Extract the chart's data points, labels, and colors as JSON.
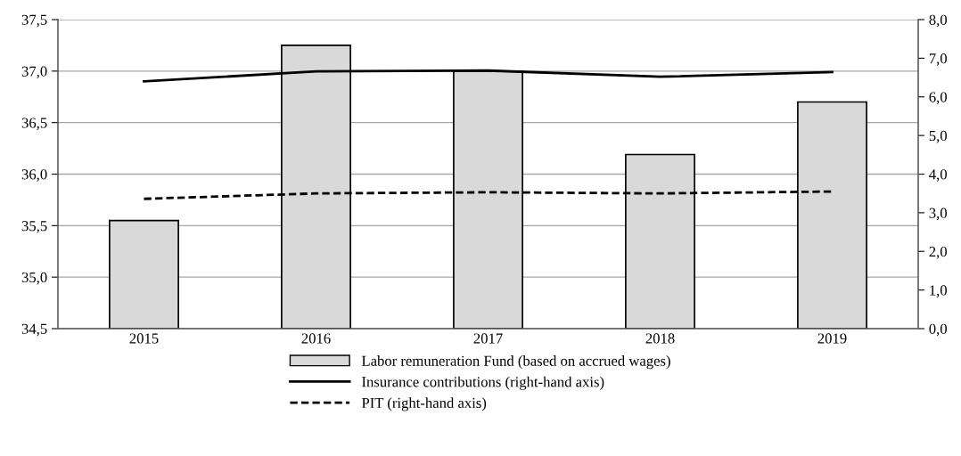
{
  "chart_data": {
    "type": "bar",
    "categories": [
      "2015",
      "2016",
      "2017",
      "2018",
      "2019"
    ],
    "series": [
      {
        "name": "Labor remuneration Fund (based on accrued wages)",
        "color": "#d9d9d9",
        "values": [
          35.55,
          37.25,
          37.0,
          36.19,
          36.7
        ]
      },
      {
        "name": "Insurance contributions (right-hand axis)",
        "type": "line",
        "axis": "y2",
        "color": "#000000",
        "line_style": "solid",
        "values": [
          6.4,
          6.66,
          6.68,
          6.52,
          6.64
        ]
      },
      {
        "name": "PIT (right-hand axis)",
        "type": "line",
        "axis": "y2",
        "color": "#000000",
        "line_style": "dashed",
        "values": [
          3.36,
          3.5,
          3.53,
          3.5,
          3.55
        ]
      }
    ],
    "ylim": [
      34.5,
      37.5
    ],
    "yticks": [
      {
        "value": 34.5,
        "label": "34,5"
      },
      {
        "value": 35.0,
        "label": "35,0"
      },
      {
        "value": 35.5,
        "label": "35,5"
      },
      {
        "value": 36.0,
        "label": "36,0"
      },
      {
        "value": 36.5,
        "label": "36,5"
      },
      {
        "value": 37.0,
        "label": "37,0"
      },
      {
        "value": 37.5,
        "label": "37,5"
      }
    ],
    "y2lim": [
      0,
      8
    ],
    "y2ticks": [
      {
        "value": 0,
        "label": "0,0"
      },
      {
        "value": 1,
        "label": "1,0"
      },
      {
        "value": 2,
        "label": "2,0"
      },
      {
        "value": 3,
        "label": "3,0"
      },
      {
        "value": 4,
        "label": "4,0"
      },
      {
        "value": 5,
        "label": "5,0"
      },
      {
        "value": 6,
        "label": "6,0"
      },
      {
        "value": 7,
        "label": "7,0"
      },
      {
        "value": 8,
        "label": "8,0"
      }
    ],
    "grid": "y",
    "legend": "bottom"
  }
}
